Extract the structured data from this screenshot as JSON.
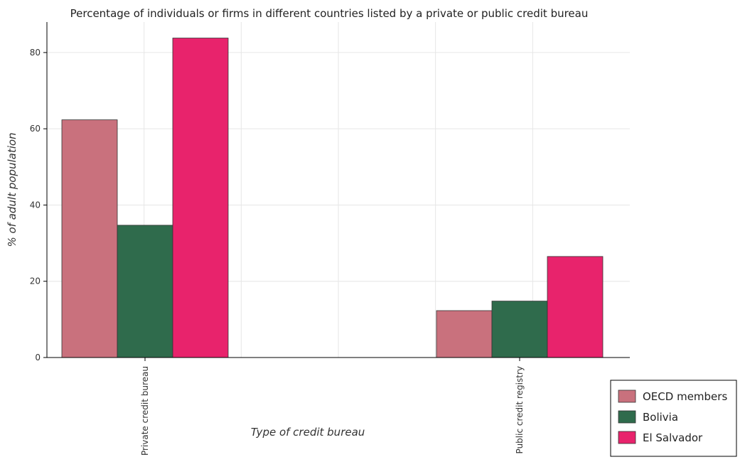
{
  "chart_data": {
    "type": "bar",
    "title": "Percentage of individuals or firms in different countries listed by a private or public credit bureau",
    "xlabel": "Type of credit bureau",
    "ylabel": "% of adult population",
    "categories": [
      "Private credit bureau",
      "Public credit registry"
    ],
    "ylim": [
      0,
      88
    ],
    "yticks": [
      0,
      20,
      40,
      60,
      80
    ],
    "grid": true,
    "legend_position": "bottom-right",
    "series": [
      {
        "name": "OECD members",
        "color": "#c9717d",
        "values": [
          62.35,
          12.3
        ]
      },
      {
        "name": "Bolivia",
        "color": "#2f6b4c",
        "values": [
          34.7,
          14.8
        ]
      },
      {
        "name": "El Salvador",
        "color": "#e8236c",
        "values": [
          83.8,
          26.5
        ]
      }
    ]
  }
}
